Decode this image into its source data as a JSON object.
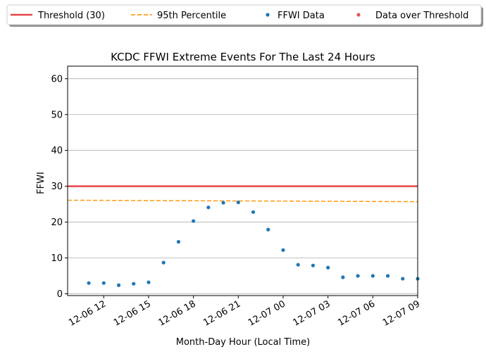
{
  "chart_data": {
    "type": "scatter",
    "title": "KCDC FFWI Extreme Events For The Last 24 Hours",
    "xlabel": "Month-Day Hour (Local Time)",
    "ylabel": "FFWI",
    "xlim": [
      "2006-12-06 09:35",
      "2006-12-07 09:00"
    ],
    "ylim": [
      -0.5,
      63.5
    ],
    "grid": "y-axis horizontal",
    "legend_placement": "top, outside plot area, single row",
    "x_ticks": [
      {
        "t": "2006-12-06 12:00",
        "label": "12-06 12"
      },
      {
        "t": "2006-12-06 15:00",
        "label": "12-06 15"
      },
      {
        "t": "2006-12-06 18:00",
        "label": "12-06 18"
      },
      {
        "t": "2006-12-06 21:00",
        "label": "12-06 21"
      },
      {
        "t": "2006-12-07 00:00",
        "label": "12-07 00"
      },
      {
        "t": "2006-12-07 03:00",
        "label": "12-07 03"
      },
      {
        "t": "2006-12-07 06:00",
        "label": "12-07 06"
      },
      {
        "t": "2006-12-07 09:00",
        "label": "12-07 09"
      }
    ],
    "y_ticks": [
      0,
      10,
      20,
      30,
      40,
      50,
      60
    ],
    "threshold": {
      "name": "Threshold (30)",
      "value": 30,
      "color": "#e8464a"
    },
    "percentile": {
      "name": "95th Percentile",
      "start": [
        "2006-12-06 09:35",
        26.1
      ],
      "end": [
        "2006-12-07 09:00",
        25.7
      ],
      "color": "#ff9f1c"
    },
    "series": [
      {
        "name": "FFWI Data",
        "color": "#1f77b4",
        "points": [
          [
            "2006-12-06 11:00",
            3.0
          ],
          [
            "2006-12-06 12:00",
            3.0
          ],
          [
            "2006-12-06 13:00",
            2.4
          ],
          [
            "2006-12-06 14:00",
            2.8
          ],
          [
            "2006-12-06 15:00",
            3.2
          ],
          [
            "2006-12-06 16:00",
            8.7
          ],
          [
            "2006-12-06 17:00",
            14.5
          ],
          [
            "2006-12-06 18:00",
            20.3
          ],
          [
            "2006-12-06 19:00",
            24.1
          ],
          [
            "2006-12-06 20:00",
            25.4
          ],
          [
            "2006-12-06 21:00",
            25.5
          ],
          [
            "2006-12-06 22:00",
            22.8
          ],
          [
            "2006-12-06 23:00",
            17.9
          ],
          [
            "2006-12-07 00:00",
            12.2
          ],
          [
            "2006-12-07 01:00",
            8.1
          ],
          [
            "2006-12-07 02:00",
            7.9
          ],
          [
            "2006-12-07 03:00",
            7.3
          ],
          [
            "2006-12-07 04:00",
            4.6
          ],
          [
            "2006-12-07 05:00",
            5.0
          ],
          [
            "2006-12-07 06:00",
            5.0
          ],
          [
            "2006-12-07 07:00",
            5.0
          ],
          [
            "2006-12-07 08:00",
            4.2
          ],
          [
            "2006-12-07 09:00",
            4.2
          ]
        ]
      },
      {
        "name": "Data over Threshold",
        "color": "#e05a5a",
        "points": []
      }
    ]
  }
}
